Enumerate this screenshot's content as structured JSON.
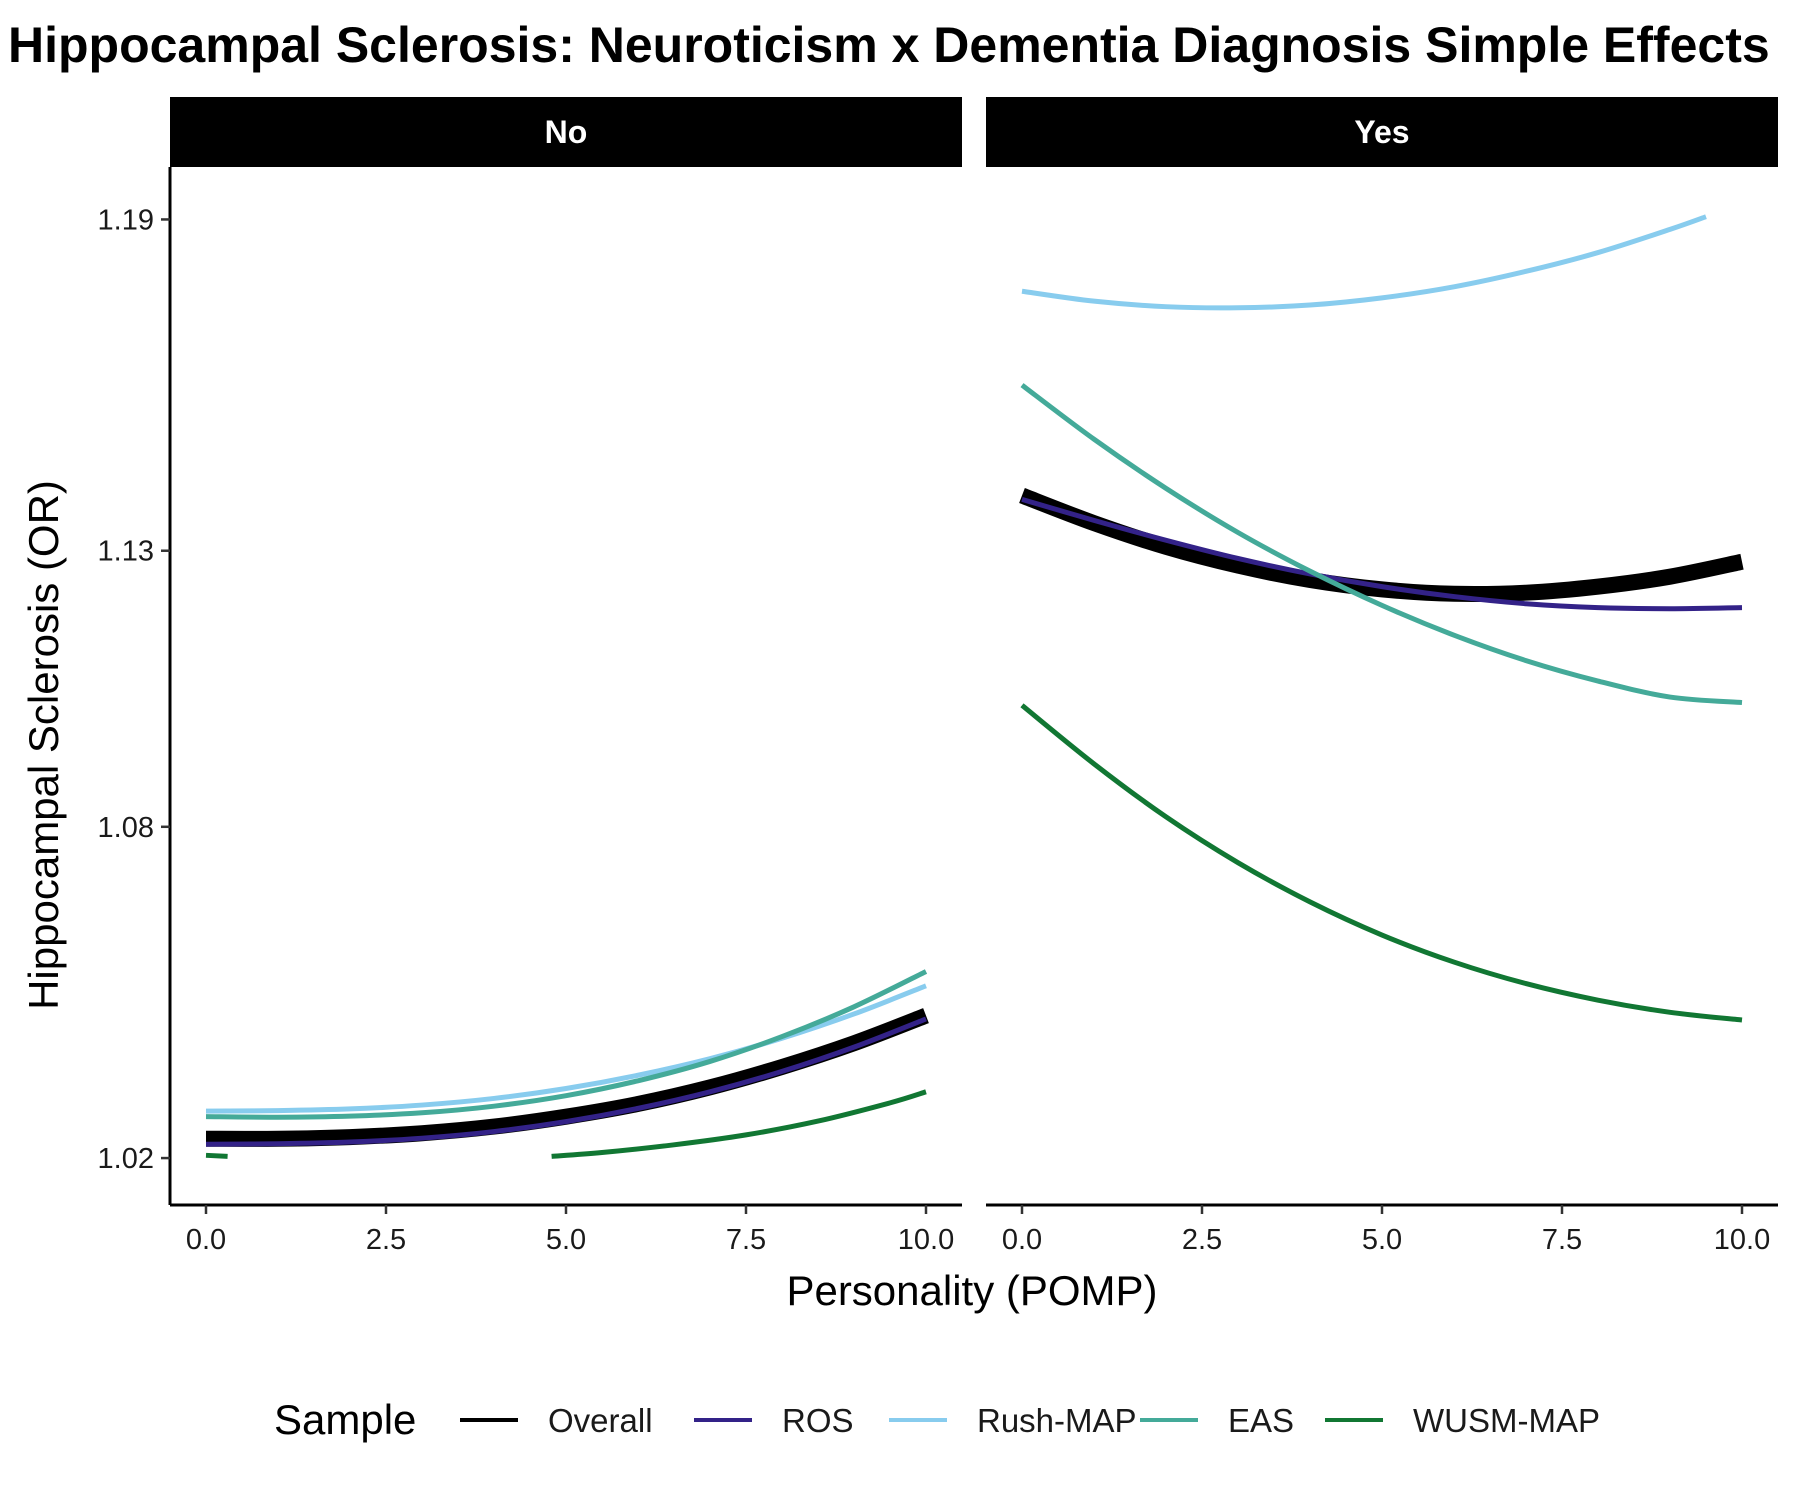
{
  "chart_data": {
    "type": "line",
    "title": "Hippocampal Sclerosis: Neuroticism x Dementia Diagnosis Simple Effects",
    "xlabel": "Personality (POMP)",
    "ylabel": "Hippocampal Sclerosis (OR)",
    "xlim": [
      -0.5,
      10.5
    ],
    "ylim": [
      1.0115,
      1.1995
    ],
    "x_ticks": [
      0,
      2.5,
      5,
      7.5,
      10
    ],
    "x_tick_labels": [
      "0.0",
      "2.5",
      "5.0",
      "7.5",
      "10.0"
    ],
    "y_ticks": [
      1.02,
      1.08,
      1.13,
      1.19
    ],
    "y_tick_labels": [
      "1.02",
      "1.08",
      "1.13",
      "1.19"
    ],
    "legend": {
      "title": "Sample",
      "position": "bottom",
      "entries": [
        "Overall",
        "ROS",
        "Rush-MAP",
        "EAS",
        "WUSM-MAP"
      ]
    },
    "colors": {
      "Overall": "#000000",
      "ROS": "#332288",
      "Rush-MAP": "#88CCEE",
      "EAS": "#44AA99",
      "WUSM-MAP": "#117733"
    },
    "grid": false,
    "panels": [
      {
        "label": "No",
        "series": [
          {
            "name": "Overall",
            "x": [
              0,
              1,
              2,
              3,
              4,
              5,
              6,
              7,
              8,
              9,
              10
            ],
            "y": [
              1.0235,
              1.0235,
              1.0238,
              1.0245,
              1.0257,
              1.0275,
              1.0298,
              1.0328,
              1.0365,
              1.0408,
              1.0458
            ]
          },
          {
            "name": "ROS",
            "x": [
              0,
              1,
              2,
              3,
              4,
              5,
              6,
              7,
              8,
              9,
              10
            ],
            "y": [
              1.0225,
              1.0226,
              1.0229,
              1.0236,
              1.0248,
              1.0266,
              1.029,
              1.032,
              1.0357,
              1.0401,
              1.0452
            ]
          },
          {
            "name": "Rush-MAP",
            "x": [
              0,
              1,
              2,
              3,
              4,
              5,
              6,
              7,
              8,
              9,
              10
            ],
            "y": [
              1.0285,
              1.0286,
              1.0289,
              1.0296,
              1.0308,
              1.0326,
              1.035,
              1.038,
              1.0417,
              1.0461,
              1.0512
            ]
          },
          {
            "name": "EAS",
            "x": [
              0,
              1,
              2,
              3,
              4,
              5,
              6,
              7,
              8,
              9,
              10
            ],
            "y": [
              1.0275,
              1.0274,
              1.0276,
              1.0282,
              1.0294,
              1.0313,
              1.034,
              1.0375,
              1.042,
              1.0474,
              1.0538
            ]
          },
          {
            "name": "WUSM-MAP",
            "x": [
              0,
              0.3,
              4.8,
              5.5,
              6.5,
              7.5,
              8.5,
              9.5,
              10
            ],
            "y": [
              1.0205,
              1.0203,
              1.0203,
              1.021,
              1.0224,
              1.0242,
              1.0267,
              1.03,
              1.032
            ]
          }
        ]
      },
      {
        "label": "Yes",
        "series": [
          {
            "name": "Overall",
            "x": [
              0,
              1,
              2,
              3,
              4,
              5,
              6,
              7,
              8,
              9,
              10
            ],
            "y": [
              1.14,
              1.135,
              1.1307,
              1.1273,
              1.1247,
              1.123,
              1.1222,
              1.1224,
              1.1235,
              1.1253,
              1.128
            ]
          },
          {
            "name": "ROS",
            "x": [
              0,
              1,
              2,
              3,
              4,
              5,
              6,
              7,
              8,
              9,
              10
            ],
            "y": [
              1.1393,
              1.1355,
              1.1319,
              1.1286,
              1.1258,
              1.1235,
              1.1217,
              1.1204,
              1.1197,
              1.1195,
              1.1197
            ]
          },
          {
            "name": "Rush-MAP",
            "x": [
              0,
              1,
              2,
              3,
              4,
              5,
              6,
              7,
              8,
              9,
              9.5
            ],
            "y": [
              1.177,
              1.1752,
              1.1742,
              1.174,
              1.1745,
              1.1758,
              1.1778,
              1.1806,
              1.184,
              1.1882,
              1.1905
            ]
          },
          {
            "name": "EAS",
            "x": [
              0,
              1,
              2,
              3,
              4,
              5,
              6,
              7,
              8,
              9,
              10
            ],
            "y": [
              1.16,
              1.1502,
              1.1413,
              1.1333,
              1.1263,
              1.1201,
              1.1147,
              1.1101,
              1.1064,
              1.1035,
              1.1025
            ]
          },
          {
            "name": "WUSM-MAP",
            "x": [
              0,
              1,
              2,
              3,
              4,
              5,
              6,
              7,
              8,
              9,
              10
            ],
            "y": [
              1.102,
              1.0914,
              1.0818,
              1.0735,
              1.0664,
              1.0604,
              1.0555,
              1.0516,
              1.0486,
              1.0464,
              1.045
            ]
          }
        ]
      }
    ]
  }
}
